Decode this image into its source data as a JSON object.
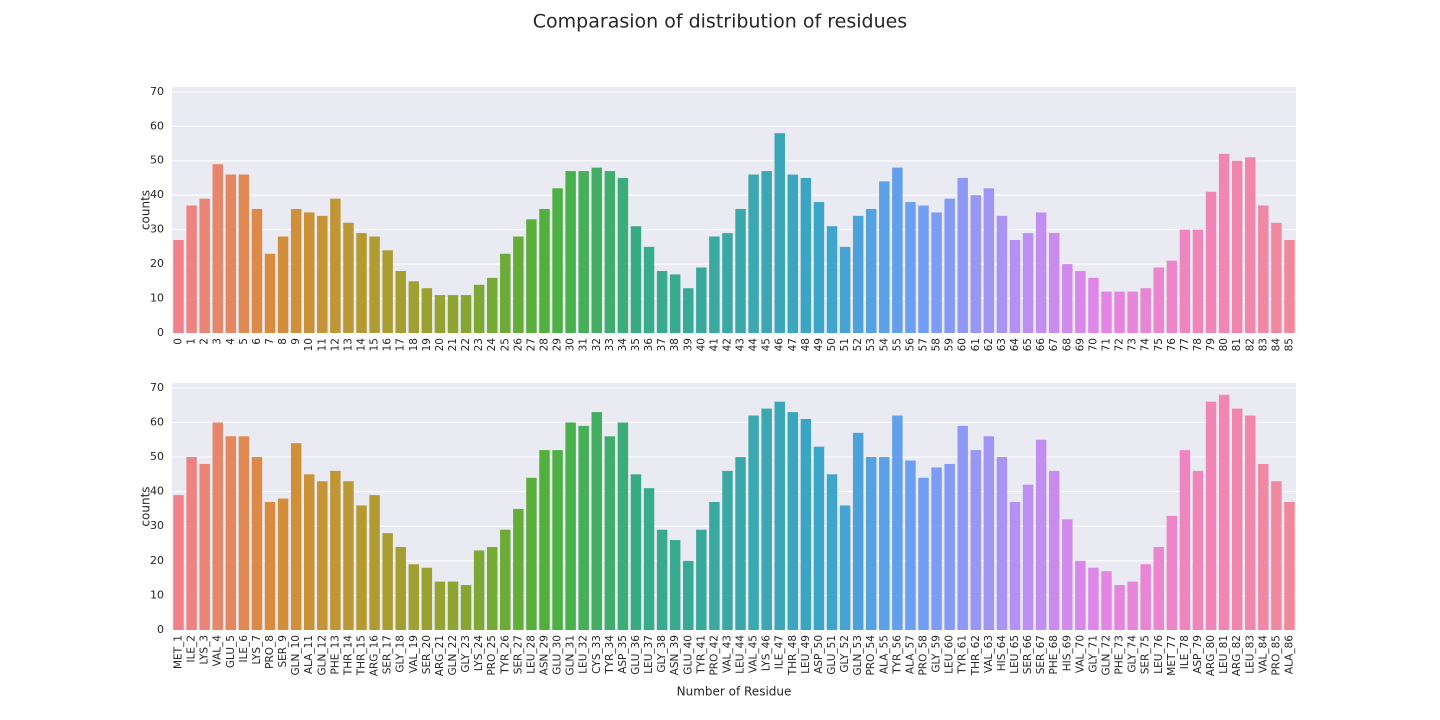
{
  "title": "Comparasion of distribution of residues",
  "palette": [
    "#f0818b",
    "#d98c3c",
    "#b49a31",
    "#8da531",
    "#4eb13c",
    "#38ab87",
    "#3aa8a6",
    "#3ba6cb",
    "#6f9ef5",
    "#b292f4",
    "#e485e6",
    "#f085bc",
    "#f0889a"
  ],
  "chart_data": [
    {
      "type": "bar",
      "ylabel": "counts",
      "categories": [
        "0",
        "1",
        "2",
        "3",
        "4",
        "5",
        "6",
        "7",
        "8",
        "9",
        "10",
        "11",
        "12",
        "13",
        "14",
        "15",
        "16",
        "17",
        "18",
        "19",
        "20",
        "21",
        "22",
        "23",
        "24",
        "25",
        "26",
        "27",
        "28",
        "29",
        "30",
        "31",
        "32",
        "33",
        "34",
        "35",
        "36",
        "37",
        "38",
        "39",
        "40",
        "41",
        "42",
        "43",
        "44",
        "45",
        "46",
        "47",
        "48",
        "49",
        "50",
        "51",
        "52",
        "53",
        "54",
        "55",
        "56",
        "57",
        "58",
        "59",
        "60",
        "61",
        "62",
        "63",
        "64",
        "65",
        "66",
        "67",
        "68",
        "69",
        "70",
        "71",
        "72",
        "73",
        "74",
        "75",
        "76",
        "77",
        "78",
        "79",
        "80",
        "81",
        "82",
        "83",
        "84",
        "85"
      ],
      "values": [
        27,
        37,
        39,
        49,
        46,
        46,
        36,
        23,
        28,
        36,
        35,
        34,
        39,
        32,
        29,
        28,
        24,
        18,
        15,
        13,
        11,
        11,
        11,
        14,
        16,
        23,
        28,
        33,
        36,
        42,
        47,
        47,
        48,
        47,
        45,
        31,
        25,
        18,
        17,
        13,
        19,
        28,
        29,
        36,
        46,
        47,
        58,
        46,
        45,
        38,
        31,
        25,
        34,
        36,
        44,
        48,
        38,
        37,
        35,
        39,
        45,
        40,
        42,
        34,
        27,
        29,
        35,
        29,
        20,
        18,
        16,
        12,
        12,
        12,
        13,
        19,
        21,
        30,
        30,
        41,
        52,
        50,
        51,
        37,
        32,
        27
      ],
      "ylim": [
        0,
        71.4
      ],
      "yticks": [
        0,
        10,
        20,
        30,
        40,
        50,
        60,
        70
      ],
      "grid": true
    },
    {
      "type": "bar",
      "ylabel": "counts",
      "xlabel": "Number of Residue",
      "categories": [
        "MET_1",
        "ILE_2",
        "LYS_3",
        "VAL_4",
        "GLU_5",
        "ILE_6",
        "LYS_7",
        "PRO_8",
        "SER_9",
        "GLN_10",
        "ALA_11",
        "GLN_12",
        "PHE_13",
        "THR_14",
        "THR_15",
        "ARG_16",
        "SER_17",
        "GLY_18",
        "VAL_19",
        "SER_20",
        "ARG_21",
        "GLN_22",
        "GLY_23",
        "LYS_24",
        "PRO_25",
        "TYR_26",
        "SER_27",
        "LEU_28",
        "ASN_29",
        "GLU_30",
        "GLN_31",
        "LEU_32",
        "CYS_33",
        "TYR_34",
        "ASP_35",
        "GLU_36",
        "LEU_37",
        "GLY_38",
        "ASN_39",
        "GLU_40",
        "TYR_41",
        "PRO_42",
        "VAL_43",
        "LEU_44",
        "VAL_45",
        "LYS_46",
        "ILE_47",
        "THR_48",
        "LEU_49",
        "ASP_50",
        "GLU_51",
        "GLY_52",
        "GLN_53",
        "PRO_54",
        "ALA_55",
        "TYR_56",
        "ALA_57",
        "PRO_58",
        "GLY_59",
        "LEU_60",
        "TYR_61",
        "THR_62",
        "VAL_63",
        "HIS_64",
        "LEU_65",
        "SER_66",
        "SER_67",
        "PHE_68",
        "HIS_69",
        "VAL_70",
        "GLY_71",
        "GLN_72",
        "PHE_73",
        "GLY_74",
        "SER_75",
        "LEU_76",
        "MET_77",
        "ILE_78",
        "ASP_79",
        "ARG_80",
        "LEU_81",
        "ARG_82",
        "LEU_83",
        "VAL_84",
        "PRO_85",
        "ALA_86"
      ],
      "values": [
        39,
        50,
        48,
        60,
        56,
        56,
        50,
        37,
        38,
        54,
        45,
        43,
        46,
        43,
        36,
        39,
        28,
        24,
        19,
        18,
        14,
        14,
        13,
        23,
        24,
        29,
        35,
        44,
        52,
        52,
        60,
        59,
        63,
        56,
        60,
        45,
        41,
        29,
        26,
        20,
        29,
        37,
        46,
        50,
        62,
        64,
        66,
        63,
        61,
        53,
        45,
        36,
        57,
        50,
        50,
        62,
        49,
        44,
        47,
        48,
        59,
        52,
        56,
        50,
        37,
        42,
        55,
        46,
        32,
        20,
        18,
        17,
        13,
        14,
        19,
        24,
        33,
        52,
        46,
        66,
        68,
        64,
        62,
        48,
        43,
        37
      ],
      "ylim": [
        0,
        71.4
      ],
      "yticks": [
        0,
        10,
        20,
        30,
        40,
        50,
        60,
        70
      ],
      "grid": true
    }
  ]
}
